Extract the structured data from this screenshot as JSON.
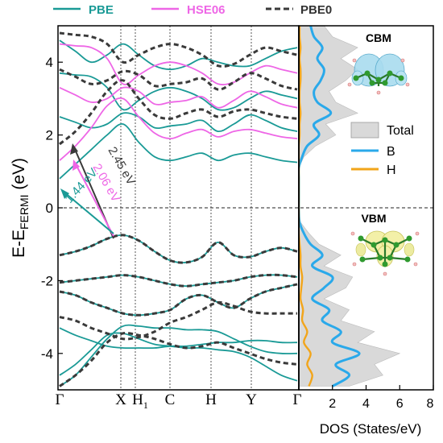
{
  "legend_top": [
    {
      "label": "PBE",
      "color": "#1a9a96",
      "dash": false
    },
    {
      "label": "HSE06",
      "color": "#ee66e6",
      "dash": false
    },
    {
      "label": "PBE0",
      "color": "#3a3a3a",
      "dash": true
    }
  ],
  "y_label": {
    "main": "E-E",
    "sub": "FERMI",
    "unit": " (eV)"
  },
  "dos_xlabel": "DOS (States/eV)",
  "kpoints": [
    {
      "label": "Γ",
      "sub": ""
    },
    {
      "label": "X",
      "sub": ""
    },
    {
      "label": "H",
      "sub": "1"
    },
    {
      "label": "C",
      "sub": ""
    },
    {
      "label": "H",
      "sub": ""
    },
    {
      "label": "Y",
      "sub": ""
    },
    {
      "label": "Γ",
      "sub": ""
    }
  ],
  "gap_annotations": [
    {
      "text": "2.45 eV",
      "color": "#3a3a3a"
    },
    {
      "text": "2.06 eV",
      "color": "#ee66e6"
    },
    {
      "text": "1.44 eV",
      "color": "#1a9a96"
    }
  ],
  "orbital_labels": {
    "cbm": "CBM",
    "vbm": "VBM"
  },
  "dos_legend": [
    {
      "label": "Total",
      "color": "#d9d9d9",
      "type": "fill"
    },
    {
      "label": "B",
      "color": "#2aa9ea",
      "type": "line"
    },
    {
      "label": "H",
      "color": "#f2a51a",
      "type": "line"
    }
  ],
  "chart_data": [
    {
      "type": "line",
      "name": "band-structure",
      "ylabel": "E-EFERMI (eV)",
      "ylim": [
        -5,
        5
      ],
      "yticks": [
        -4,
        -2,
        0,
        2,
        4
      ],
      "kpath": [
        "Γ",
        "X",
        "H1",
        "C",
        "H",
        "Y",
        "Γ"
      ],
      "fermi_level": 0,
      "band_gaps_eV": {
        "PBE": 1.44,
        "HSE06": 2.06,
        "PBE0": 2.45
      },
      "series": [
        {
          "name": "PBE",
          "color": "#1a9a96",
          "dash": false,
          "bands": [
            [
              -4.9,
              -4.6,
              -4.1,
              -3.6,
              -3.25,
              -3.25,
              -3.3,
              -3.3,
              -3.35,
              -3.35,
              -3.4,
              -3.6,
              -3.8,
              -3.95,
              -4.0,
              -4.0
            ],
            [
              -4.6,
              -4.3,
              -3.9,
              -3.5,
              -3.45,
              -3.6,
              -3.75,
              -3.8,
              -3.85,
              -3.85,
              -3.9,
              -3.95,
              -4.1,
              -4.35,
              -4.6,
              -4.75
            ],
            [
              -3.3,
              -3.5,
              -3.65,
              -3.8,
              -3.85,
              -3.85,
              -3.85,
              -3.8,
              -3.8,
              -3.75,
              -3.7,
              -3.7,
              -3.65,
              -3.65,
              -3.7,
              -3.7
            ],
            [
              -2.3,
              -2.4,
              -2.6,
              -2.75,
              -2.9,
              -2.95,
              -2.9,
              -2.8,
              -2.5,
              -2.4,
              -2.6,
              -2.75,
              -2.5,
              -2.3,
              -2.2,
              -2.1
            ],
            [
              -2.05,
              -2.0,
              -1.95,
              -1.9,
              -1.85,
              -1.9,
              -2.0,
              -2.1,
              -2.15,
              -2.1,
              -2.05,
              -2.0,
              -1.9,
              -1.85,
              -1.85,
              -1.9
            ],
            [
              -1.3,
              -1.2,
              -1.05,
              -0.85,
              -0.75,
              -0.9,
              -1.2,
              -1.45,
              -1.5,
              -1.35,
              -0.95,
              -1.3,
              -1.35,
              -1.2,
              -1.1,
              -1.2
            ],
            [
              0.8,
              1.2,
              1.6,
              2.0,
              2.3,
              1.8,
              1.4,
              1.3,
              1.4,
              1.5,
              1.3,
              1.45,
              1.5,
              1.4,
              1.3,
              1.25
            ],
            [
              2.5,
              2.35,
              2.2,
              2.3,
              2.6,
              2.5,
              2.2,
              2.25,
              2.3,
              2.4,
              2.1,
              2.3,
              2.55,
              2.4,
              2.2,
              2.1
            ],
            [
              3.7,
              3.65,
              3.6,
              3.3,
              2.7,
              2.95,
              3.2,
              3.3,
              3.2,
              3.0,
              2.7,
              2.75,
              3.0,
              3.2,
              3.1,
              3.0
            ],
            [
              4.6,
              4.3,
              4.0,
              4.2,
              4.5,
              4.2,
              3.9,
              3.8,
              3.9,
              4.1,
              4.0,
              3.9,
              3.9,
              4.1,
              4.3,
              4.4
            ]
          ]
        },
        {
          "name": "HSE06",
          "color": "#ee66e6",
          "dash": false,
          "bands": [
            [
              1.3,
              1.7,
              2.2,
              2.8,
              3.0,
              2.5,
              2.05,
              1.9,
              2.05,
              2.15,
              1.95,
              2.1,
              2.15,
              2.05,
              1.95,
              1.9
            ],
            [
              3.3,
              3.1,
              2.9,
              3.0,
              3.3,
              3.2,
              2.85,
              2.9,
              2.95,
              3.05,
              2.75,
              2.95,
              3.2,
              3.05,
              2.85,
              2.75
            ],
            [
              4.5,
              4.45,
              4.4,
              4.1,
              3.4,
              3.65,
              3.9,
              4.0,
              3.9,
              3.7,
              3.4,
              3.45,
              3.7,
              3.9,
              3.8,
              3.7
            ]
          ]
        },
        {
          "name": "PBE0",
          "color": "#3a3a3a",
          "dash": true,
          "bands": [
            [
              -4.9,
              -4.6,
              -4.2,
              -3.7,
              -3.45,
              -3.5,
              -3.6,
              -3.75,
              -3.85,
              -3.8,
              -3.7,
              -3.85,
              -4.0,
              -4.15,
              -4.25,
              -4.3
            ],
            [
              -3.0,
              -3.1,
              -3.3,
              -3.45,
              -3.6,
              -3.55,
              -3.4,
              -3.15,
              -3.0,
              -2.8,
              -2.6,
              -2.7,
              -2.85,
              -2.9,
              -2.9,
              -2.9
            ],
            [
              -2.3,
              -2.4,
              -2.6,
              -2.75,
              -2.9,
              -2.95,
              -2.9,
              -2.8,
              -2.5,
              -2.4,
              -2.6,
              -2.75,
              -2.5,
              -2.3,
              -2.2,
              -2.1
            ],
            [
              -2.05,
              -2.0,
              -1.95,
              -1.9,
              -1.85,
              -1.9,
              -2.0,
              -2.1,
              -2.15,
              -2.1,
              -2.05,
              -2.0,
              -1.9,
              -1.85,
              -1.85,
              -1.9
            ],
            [
              -1.3,
              -1.2,
              -1.05,
              -0.85,
              -0.75,
              -0.9,
              -1.2,
              -1.45,
              -1.5,
              -1.35,
              -0.95,
              -1.3,
              -1.35,
              -1.2,
              -1.1,
              -1.2
            ],
            [
              1.75,
              2.1,
              2.6,
              3.2,
              3.5,
              3.0,
              2.55,
              2.45,
              2.6,
              2.7,
              2.5,
              2.65,
              2.7,
              2.6,
              2.5,
              2.45
            ],
            [
              3.8,
              3.6,
              3.4,
              3.5,
              3.75,
              3.65,
              3.35,
              3.4,
              3.45,
              3.55,
              3.25,
              3.45,
              3.7,
              3.55,
              3.35,
              3.25
            ],
            [
              4.8,
              4.75,
              4.7,
              4.5,
              4.0,
              4.2,
              4.4,
              4.5,
              4.4,
              4.2,
              3.9,
              3.95,
              4.2,
              4.4,
              4.3,
              4.2
            ]
          ]
        }
      ]
    },
    {
      "type": "line",
      "name": "dos",
      "xlabel": "DOS (States/eV)",
      "xlim": [
        0,
        8
      ],
      "xticks": [
        2,
        4,
        6,
        8
      ],
      "ylim": [
        -5,
        5
      ],
      "energies": [
        -4.9,
        -4.6,
        -4.3,
        -4.0,
        -3.7,
        -3.4,
        -3.1,
        -2.8,
        -2.5,
        -2.2,
        -1.9,
        -1.6,
        -1.3,
        -1.0,
        -0.7,
        -0.4,
        -0.1,
        0.2,
        0.5,
        0.8,
        1.1,
        1.4,
        1.7,
        2.0,
        2.3,
        2.6,
        2.9,
        3.2,
        3.5,
        3.8,
        4.1,
        4.4,
        4.7,
        5.0
      ],
      "series": [
        {
          "name": "Total",
          "color": "#d9d9d9",
          "values": [
            3.0,
            5.0,
            4.5,
            6.0,
            3.5,
            4.5,
            2.5,
            3.0,
            1.5,
            2.8,
            3.2,
            1.5,
            2.5,
            1.2,
            0.6,
            0.1,
            0,
            0,
            0,
            0,
            0,
            0.3,
            1.0,
            2.2,
            1.6,
            3.5,
            2.2,
            1.8,
            2.8,
            3.5,
            2.5,
            3.5,
            2.0,
            1.5
          ]
        },
        {
          "name": "B",
          "color": "#2aa9ea",
          "values": [
            2.0,
            3.0,
            2.2,
            3.6,
            2.0,
            2.5,
            1.4,
            1.8,
            0.8,
            1.5,
            2.0,
            0.8,
            1.4,
            0.7,
            0.3,
            0.05,
            0,
            0,
            0,
            0,
            0,
            0.2,
            0.5,
            1.2,
            0.9,
            1.9,
            1.1,
            0.9,
            1.3,
            1.5,
            1.1,
            1.4,
            0.9,
            0.7
          ]
        },
        {
          "name": "H",
          "color": "#f2a51a",
          "values": [
            0.6,
            0.8,
            0.5,
            0.7,
            0.3,
            0.5,
            0.2,
            0.25,
            0.1,
            0.15,
            0.2,
            0.1,
            0.1,
            0.05,
            0,
            0,
            0,
            0,
            0,
            0,
            0,
            0,
            0,
            0.05,
            0.05,
            0.1,
            0.05,
            0.05,
            0.1,
            0.1,
            0.05,
            0.1,
            0.05,
            0.05
          ]
        }
      ]
    }
  ]
}
